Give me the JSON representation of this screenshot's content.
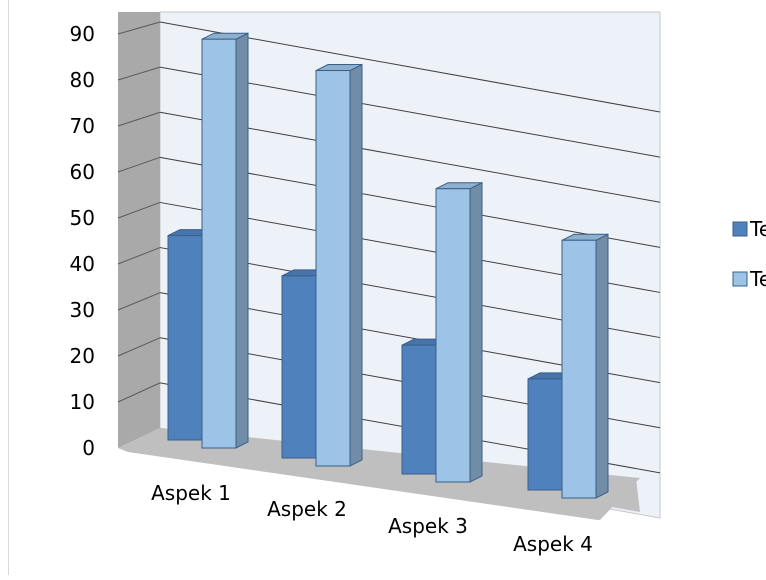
{
  "chart_data": {
    "type": "bar",
    "variant": "3d-clustered-column",
    "categories": [
      "Aspek 1",
      "Aspek 2",
      "Aspek 3",
      "Aspek 4"
    ],
    "series": [
      {
        "name": "Te",
        "values": [
          46,
          41,
          29,
          25
        ],
        "color": "#4f81bd"
      },
      {
        "name": "Te",
        "values": [
          92,
          89,
          66,
          58
        ],
        "color": "#9dc3e6"
      }
    ],
    "y_ticks": [
      "0",
      "10",
      "20",
      "30",
      "40",
      "50",
      "60",
      "70",
      "80",
      "90"
    ],
    "ylim": [
      0,
      90
    ],
    "grid": true,
    "legend_position": "right (cropped)",
    "colors": {
      "wall": "#edf1f8",
      "side_wall": "#a9a9a9",
      "floor": "#bfbfbf",
      "gridline": "#404040"
    }
  }
}
